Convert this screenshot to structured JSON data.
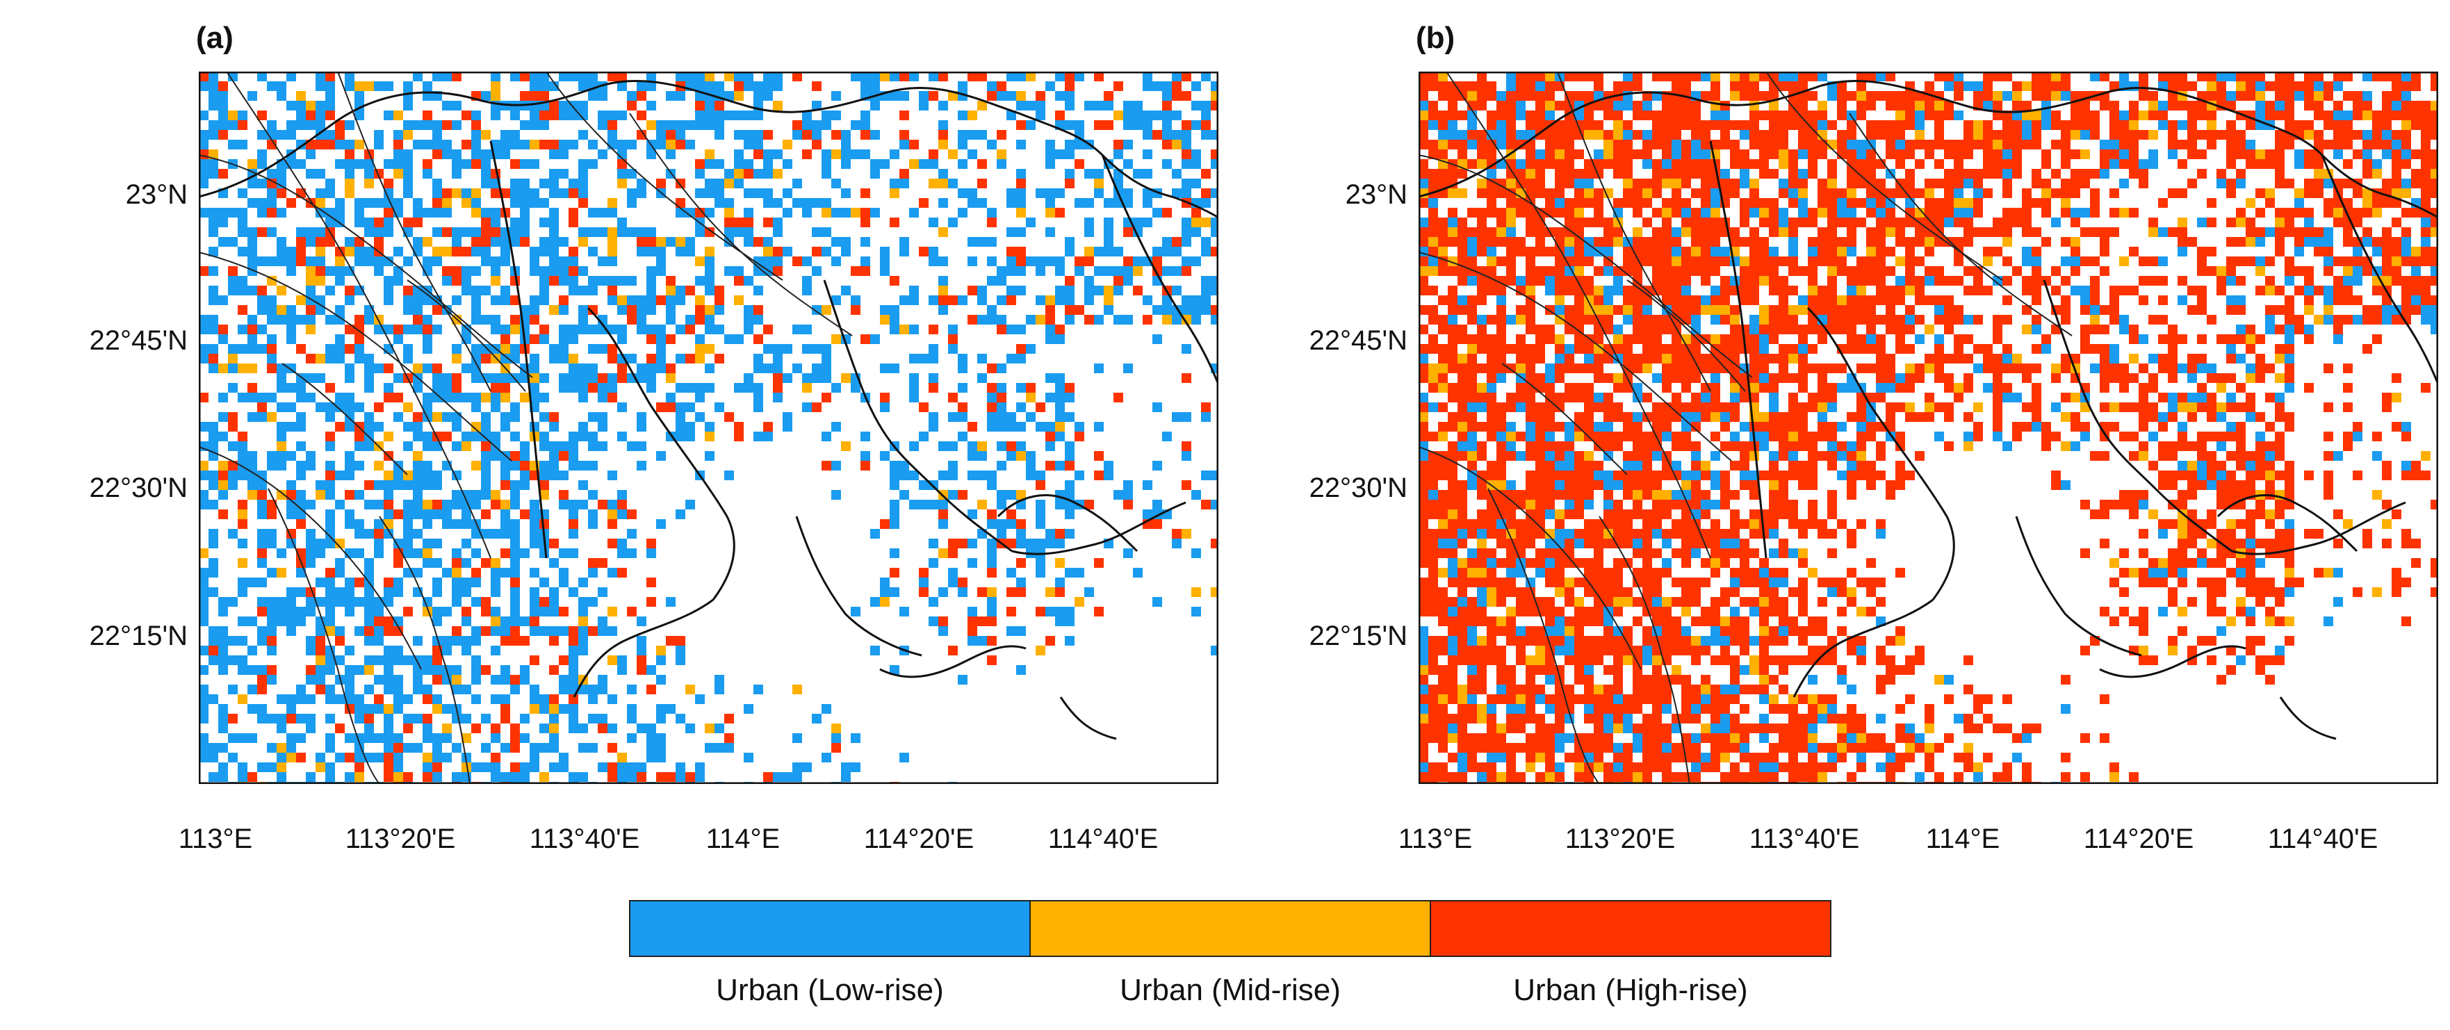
{
  "panels": [
    {
      "label": "(a)"
    },
    {
      "label": "(b)"
    }
  ],
  "axes": {
    "lat_ticks": [
      "23°N",
      "22°45'N",
      "22°30'N",
      "22°15'N"
    ],
    "lon_ticks": [
      "113°E",
      "113°20'E",
      "113°40'E",
      "114°E",
      "114°20'E",
      "114°40'E"
    ]
  },
  "legend": {
    "items": [
      {
        "label": "Urban (Low-rise)",
        "color": "#1a9cf0"
      },
      {
        "label": "Urban (Mid-rise)",
        "color": "#ffb000"
      },
      {
        "label": "Urban (High-rise)",
        "color": "#ff3300"
      }
    ]
  },
  "colors": {
    "low_rise": "#1a9cf0",
    "mid_rise": "#ffb000",
    "high_rise": "#ff3300"
  },
  "chart_data": {
    "type": "map",
    "title": "",
    "categories": [
      "Urban (Low-rise)",
      "Urban (Mid-rise)",
      "Urban (High-rise)"
    ],
    "lat_range_deg": [
      22.0,
      23.25
    ],
    "lon_range_deg": [
      112.93,
      114.83
    ]
  }
}
